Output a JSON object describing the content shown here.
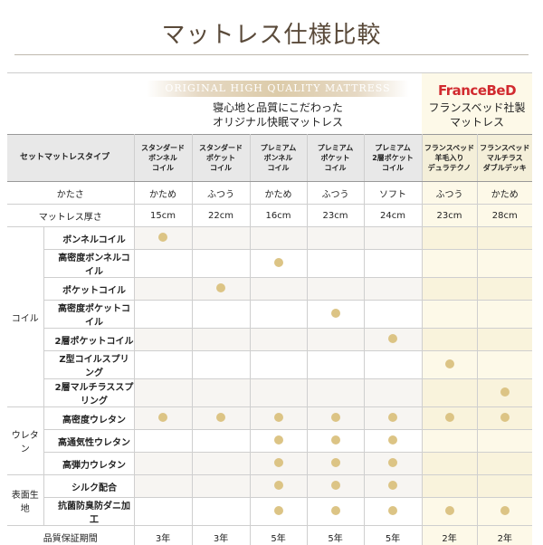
{
  "title": "マットレス仕様比較",
  "header": {
    "original_band": "ORIGINAL HIGH QUALITY MATTRESS",
    "original_sub_line1": "寝心地と品質にこだわった",
    "original_sub_line2": "オリジナル快眠マットレス",
    "fb_logo": "FranceBeD",
    "fb_sub_line1": "フランスベッド社製",
    "fb_sub_line2": "マットレス"
  },
  "type_label": "セットマットレスタイプ",
  "columns": [
    {
      "l1": "スタンダード",
      "l2": "ボンネル",
      "l3": "コイル"
    },
    {
      "l1": "スタンダード",
      "l2": "ポケット",
      "l3": "コイル"
    },
    {
      "l1": "プレミアム",
      "l2": "ボンネル",
      "l3": "コイル"
    },
    {
      "l1": "プレミアム",
      "l2": "ポケット",
      "l3": "コイル"
    },
    {
      "l1": "プレミアム",
      "l2": "2層ポケット",
      "l3": "コイル"
    },
    {
      "l1": "フランスベッド",
      "l2": "羊毛入り",
      "l3": "デュラテクノ"
    },
    {
      "l1": "フランスベッド",
      "l2": "マルチラス",
      "l3": "ダブルデッキ"
    }
  ],
  "hardness": {
    "label": "かたさ",
    "values": [
      "かため",
      "ふつう",
      "かため",
      "ふつう",
      "ソフト",
      "ふつう",
      "かため"
    ]
  },
  "thickness": {
    "label": "マットレス厚さ",
    "values": [
      "15cm",
      "22cm",
      "16cm",
      "23cm",
      "24cm",
      "23cm",
      "28cm"
    ]
  },
  "groups": {
    "coil": "コイル",
    "urethane": "ウレタン",
    "fabric": "表面生地"
  },
  "coil_rows": [
    {
      "label": "ボンネルコイル",
      "marks": [
        true,
        false,
        false,
        false,
        false,
        false,
        false
      ]
    },
    {
      "label": "高密度ボンネルコイル",
      "marks": [
        false,
        false,
        true,
        false,
        false,
        false,
        false
      ]
    },
    {
      "label": "ポケットコイル",
      "marks": [
        false,
        true,
        false,
        false,
        false,
        false,
        false
      ]
    },
    {
      "label": "高密度ポケットコイル",
      "marks": [
        false,
        false,
        false,
        true,
        false,
        false,
        false
      ]
    },
    {
      "label": "2層ポケットコイル",
      "marks": [
        false,
        false,
        false,
        false,
        true,
        false,
        false
      ]
    },
    {
      "label": "Z型コイルスプリング",
      "marks": [
        false,
        false,
        false,
        false,
        false,
        true,
        false
      ]
    },
    {
      "label": "2層マルチラススプリング",
      "marks": [
        false,
        false,
        false,
        false,
        false,
        false,
        true
      ]
    }
  ],
  "urethane_rows": [
    {
      "label": "高密度ウレタン",
      "marks": [
        true,
        true,
        true,
        true,
        true,
        true,
        true
      ]
    },
    {
      "label": "高通気性ウレタン",
      "marks": [
        false,
        false,
        true,
        true,
        true,
        false,
        false
      ]
    },
    {
      "label": "高弾力ウレタン",
      "marks": [
        false,
        false,
        true,
        true,
        true,
        false,
        false
      ]
    }
  ],
  "fabric_rows": [
    {
      "label": "シルク配合",
      "marks": [
        false,
        false,
        true,
        true,
        true,
        false,
        false
      ]
    },
    {
      "label": "抗菌防臭防ダニ加工",
      "marks": [
        false,
        false,
        true,
        true,
        true,
        true,
        true
      ]
    }
  ],
  "warranty": {
    "label": "品質保証期間",
    "values": [
      "3年",
      "3年",
      "5年",
      "5年",
      "5年",
      "2年",
      "2年"
    ]
  }
}
